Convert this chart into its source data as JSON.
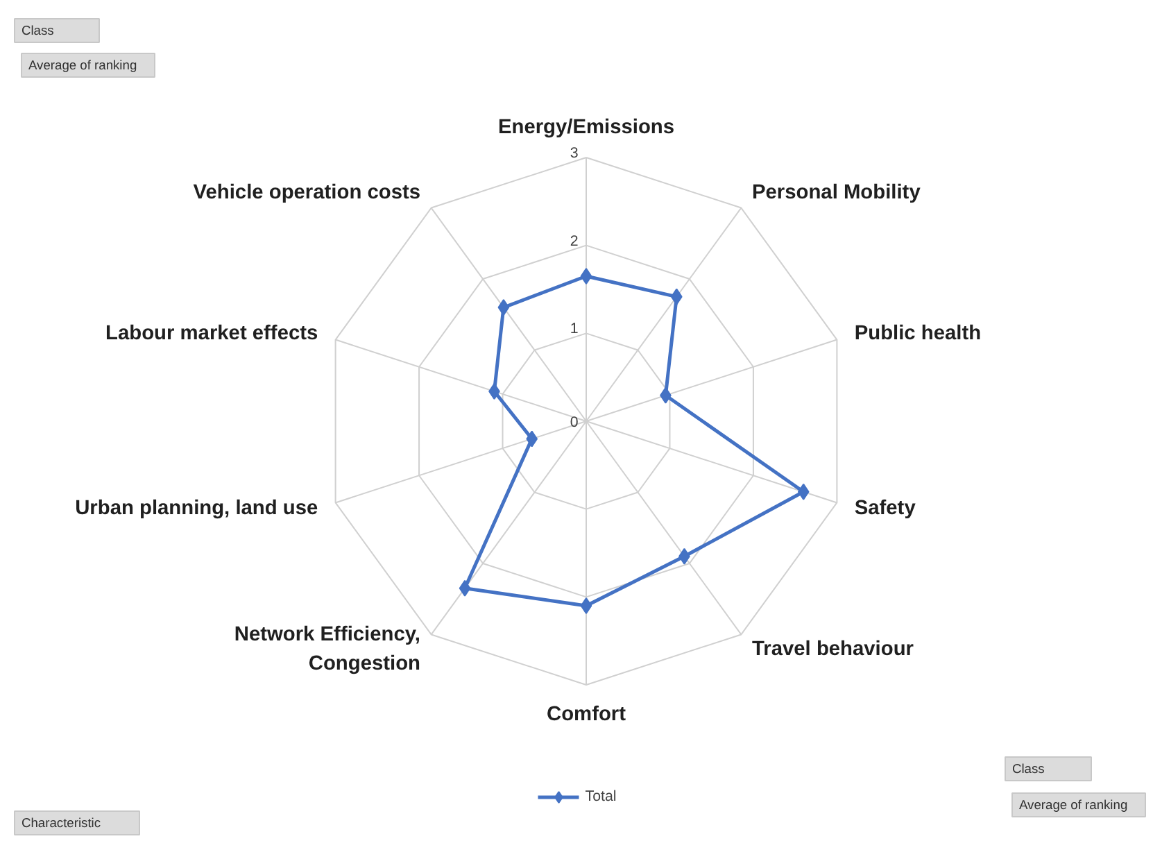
{
  "chart_data": {
    "type": "radar",
    "categories": [
      "Energy/Emissions",
      "Personal Mobility",
      "Public health",
      "Safety",
      "Travel behaviour",
      "Comfort",
      "Network Efficiency, Congestion",
      "Urban planning, land use",
      "Labour market effects",
      "Vehicle operation costs"
    ],
    "series": [
      {
        "name": "Total",
        "color": "#4472c4",
        "values": [
          1.65,
          1.75,
          0.95,
          2.6,
          1.9,
          2.1,
          2.35,
          0.65,
          1.1,
          1.6
        ]
      }
    ],
    "ylim": [
      0,
      3
    ],
    "yticks": [
      0,
      1,
      2,
      3
    ],
    "grid": true,
    "legend": "bottom",
    "marker": "diamond",
    "line_style": "solid",
    "annotations": [
      "Class",
      "Average of ranking",
      "Characteristic",
      "Class",
      "Average of ranking"
    ]
  }
}
